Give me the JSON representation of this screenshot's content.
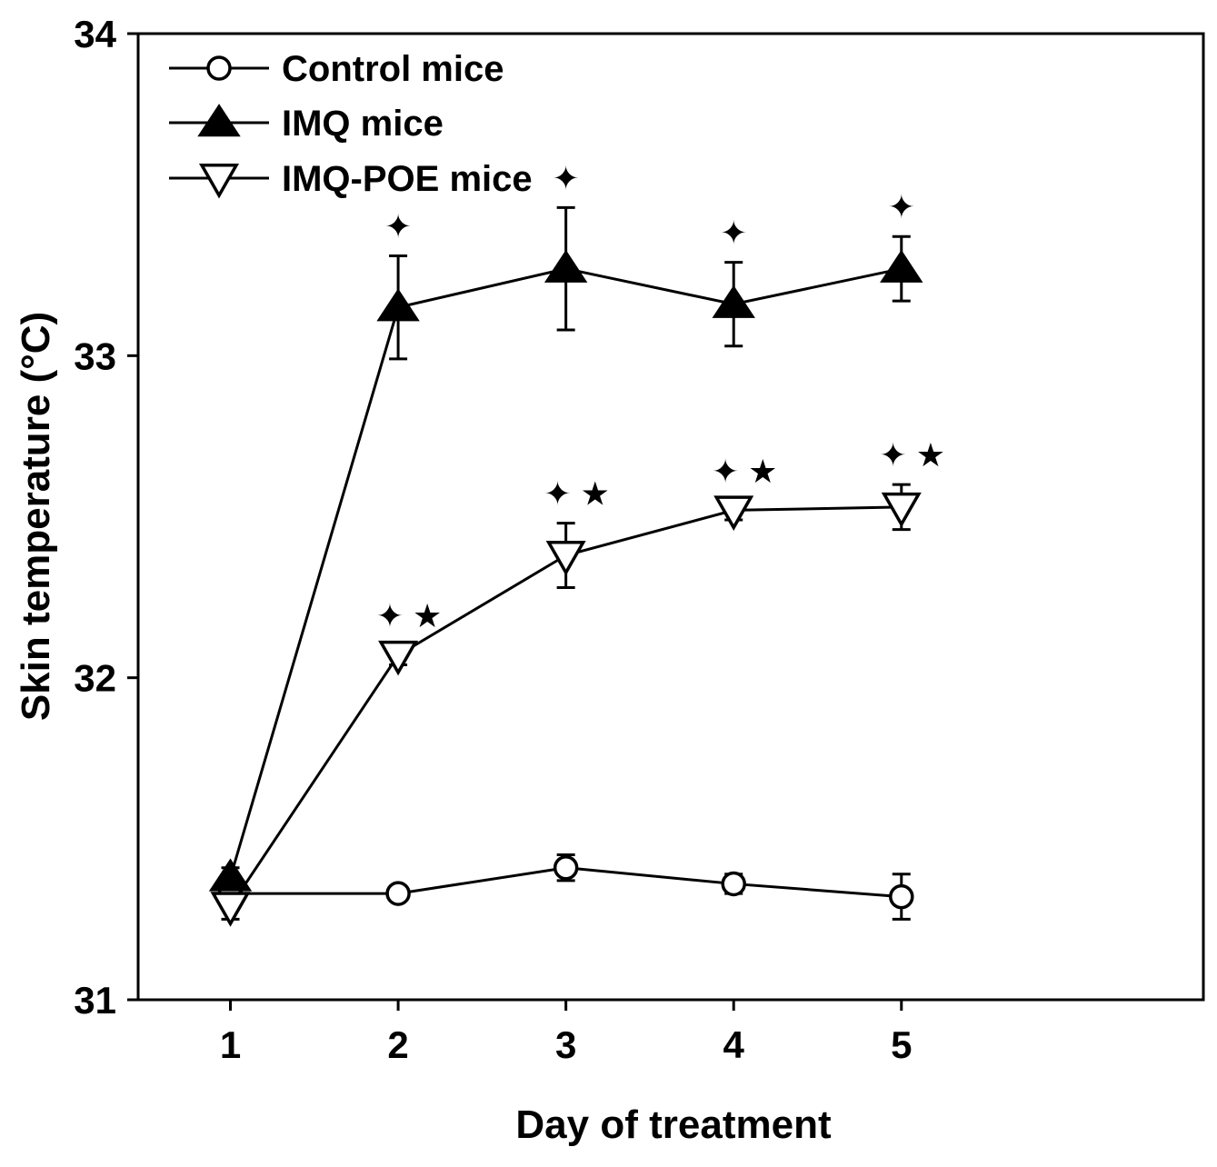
{
  "chart_data": {
    "type": "line",
    "title": "",
    "xlabel": "Day of treatment",
    "ylabel": "Skin temperature (°C)",
    "x": [
      1,
      2,
      3,
      4,
      5
    ],
    "xticks": [
      "1",
      "2",
      "3",
      "4",
      "5"
    ],
    "xlim": [
      0.45,
      6.8
    ],
    "ylim": [
      31,
      34
    ],
    "yticks": [
      "31",
      "32",
      "33",
      "34"
    ],
    "grid": false,
    "legend_position": "top-left",
    "series": [
      {
        "name": "Control mice",
        "marker": "open-circle",
        "values": [
          31.33,
          31.33,
          31.41,
          31.36,
          31.32
        ],
        "errors": [
          0.04,
          0.02,
          0.04,
          0.03,
          0.07
        ]
      },
      {
        "name": "IMQ mice",
        "marker": "filled-triangle-up",
        "values": [
          31.38,
          33.15,
          33.27,
          33.16,
          33.27
        ],
        "errors": [
          0.03,
          0.16,
          0.19,
          0.13,
          0.1
        ],
        "significance": [
          "",
          "✦",
          "✦",
          "✦",
          "✦"
        ]
      },
      {
        "name": "IMQ-POE mice",
        "marker": "open-triangle-down",
        "values": [
          31.29,
          32.07,
          32.38,
          32.52,
          32.53
        ],
        "errors": [
          0.04,
          0.03,
          0.1,
          0.03,
          0.07
        ],
        "significance": [
          "",
          "✦ ★",
          "✦ ★",
          "✦ ★",
          "✦ ★"
        ]
      }
    ]
  },
  "colors": {
    "line": "#000000",
    "background": "#ffffff"
  }
}
